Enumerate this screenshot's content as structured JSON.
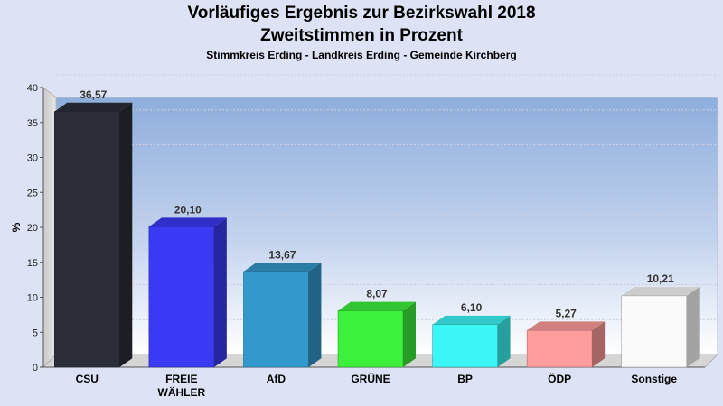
{
  "title_line1": "Vorläufiges Ergebnis zur Bezirkswahl 2018",
  "title_line2": "Zweitstimmen in Prozent",
  "subtitle": "Stimmkreis Erding - Landkreis Erding - Gemeinde Kirchberg",
  "chart_data": {
    "type": "bar",
    "title": "Vorläufiges Ergebnis zur Bezirkswahl 2018 Zweitstimmen in Prozent",
    "subtitle": "Stimmkreis Erding - Landkreis Erding - Gemeinde Kirchberg",
    "ylabel": "%",
    "xlabel": "",
    "ylim": [
      0,
      40
    ],
    "yticks": [
      0,
      5,
      10,
      15,
      20,
      25,
      30,
      35,
      40
    ],
    "grid": true,
    "categories": [
      [
        "CSU"
      ],
      [
        "FREIE",
        "WÄHLER"
      ],
      [
        "AfD"
      ],
      [
        "GRÜNE"
      ],
      [
        "BP"
      ],
      [
        "ÖDP"
      ],
      [
        "Sonstige"
      ]
    ],
    "values": [
      36.57,
      20.1,
      13.67,
      8.07,
      6.1,
      5.27,
      10.21
    ],
    "value_labels": [
      "36,57",
      "20,10",
      "13,67",
      "8,07",
      "6,10",
      "5,27",
      "10,21"
    ],
    "colors": [
      "#2b2e38",
      "#3a3af5",
      "#3399cc",
      "#3cf03c",
      "#3cf5f5",
      "#ff9c9c",
      "#fafafa"
    ]
  }
}
